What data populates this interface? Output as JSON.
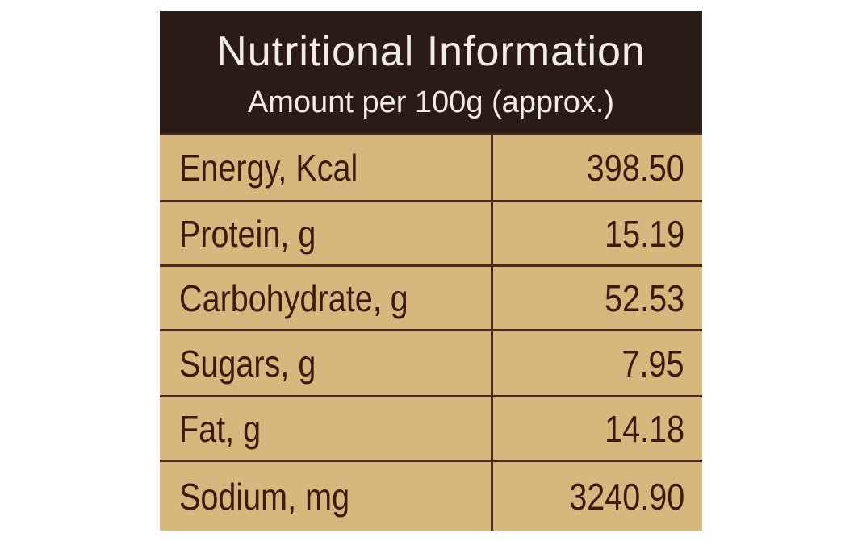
{
  "header": {
    "title": "Nutritional Information",
    "subtitle": "Amount per 100g (approx.)"
  },
  "table": {
    "rows": [
      [
        "Energy, Kcal",
        "398.50"
      ],
      [
        "Protein, g",
        "15.19"
      ],
      [
        "Carbohydrate, g",
        "52.53"
      ],
      [
        "Sugars, g",
        "7.95"
      ],
      [
        "Fat, g",
        "14.18"
      ],
      [
        "Sodium, mg",
        "3240.90"
      ]
    ]
  }
}
